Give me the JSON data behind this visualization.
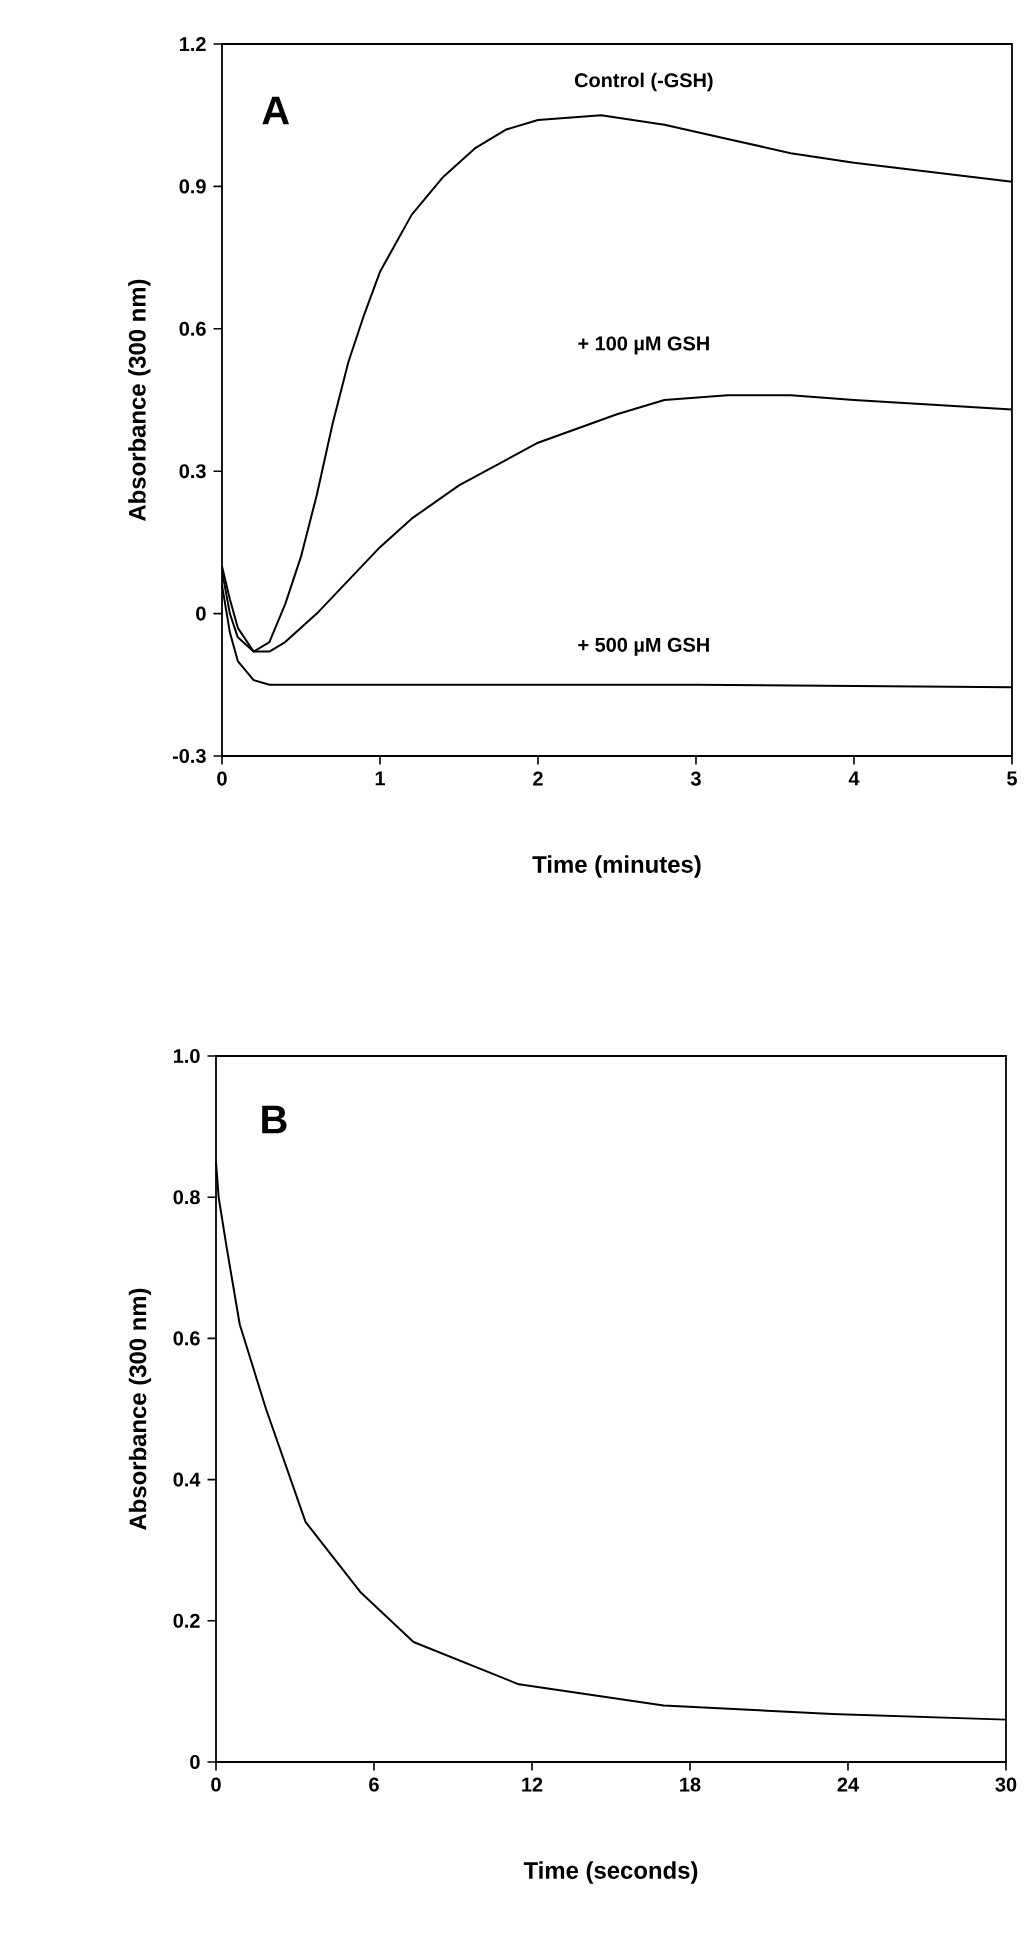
{
  "chart_data": [
    {
      "type": "line",
      "xlabel": "Time (minutes)",
      "ylabel": "Absorbance (300 nm)",
      "xlim": [
        0,
        5
      ],
      "ylim": [
        -0.3,
        1.2
      ],
      "xticks": [
        0,
        1,
        2,
        3,
        4,
        5
      ],
      "yticks": [
        -0.3,
        0,
        0.3,
        0.6,
        0.9,
        1.2
      ],
      "marker": "none",
      "line_style": "solid",
      "annotations": [
        "A"
      ],
      "series": [
        {
          "name": "Control (-GSH)",
          "color": "#000000",
          "x": [
            0,
            0.05,
            0.1,
            0.2,
            0.3,
            0.4,
            0.5,
            0.6,
            0.7,
            0.8,
            0.9,
            1.0,
            1.2,
            1.4,
            1.6,
            1.8,
            2.0,
            2.4,
            2.8,
            3.2,
            3.6,
            4.0,
            4.5,
            5
          ],
          "values": [
            0.1,
            0.03,
            -0.03,
            -0.08,
            -0.06,
            0.02,
            0.12,
            0.25,
            0.4,
            0.53,
            0.63,
            0.72,
            0.84,
            0.92,
            0.98,
            1.02,
            1.04,
            1.05,
            1.03,
            1.0,
            0.97,
            0.95,
            0.93,
            0.91
          ]
        },
        {
          "name": "+ 100 µM GSH",
          "color": "#000000",
          "x": [
            0,
            0.05,
            0.1,
            0.2,
            0.3,
            0.4,
            0.6,
            0.8,
            1.0,
            1.2,
            1.5,
            2.0,
            2.5,
            2.8,
            3.2,
            3.6,
            4.0,
            4.5,
            5
          ],
          "values": [
            0.09,
            0.0,
            -0.05,
            -0.08,
            -0.08,
            -0.06,
            0.0,
            0.07,
            0.14,
            0.2,
            0.27,
            0.36,
            0.42,
            0.45,
            0.46,
            0.46,
            0.45,
            0.44,
            0.43
          ]
        },
        {
          "name": "+ 500 µM GSH",
          "color": "#000000",
          "x": [
            0,
            0.05,
            0.1,
            0.2,
            0.3,
            1,
            3,
            5
          ],
          "values": [
            0.06,
            -0.04,
            -0.1,
            -0.14,
            -0.15,
            -0.15,
            -0.15,
            -0.155
          ]
        }
      ]
    },
    {
      "type": "line",
      "xlabel": "Time (seconds)",
      "ylabel": "Absorbance (300 nm)",
      "xlim": [
        0,
        30
      ],
      "ylim": [
        0,
        1
      ],
      "xticks": [
        0,
        6,
        12,
        18,
        24,
        30
      ],
      "yticks": [
        0,
        0.2,
        0.4,
        0.6,
        0.8,
        {
          "value": 1,
          "label": "1.0"
        }
      ],
      "marker": "none",
      "line_style": "solid",
      "annotations": [
        "B"
      ],
      "series": [
        {
          "color": "#000000",
          "x": [
            0,
            0.1,
            0.4,
            0.9,
            1.9,
            3.4,
            5.5,
            7.5,
            11.5,
            17,
            23.4,
            30
          ],
          "values": [
            0.85,
            0.8,
            0.73,
            0.62,
            0.5,
            0.34,
            0.24,
            0.17,
            0.11,
            0.08,
            0.068,
            0.06
          ]
        }
      ]
    }
  ]
}
